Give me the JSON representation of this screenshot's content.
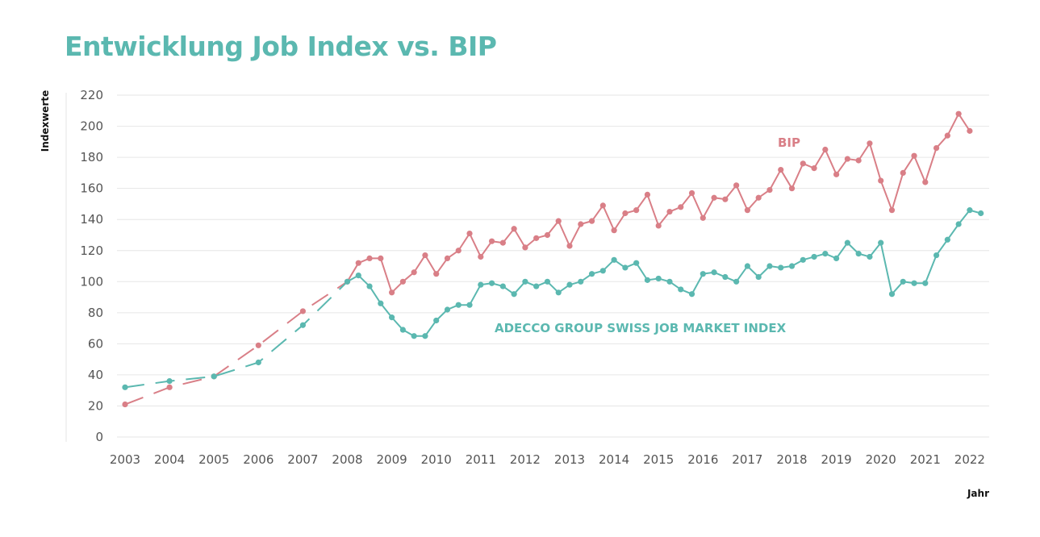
{
  "chart_data": {
    "type": "line",
    "title": "Entwicklung Job Index vs. BIP",
    "xlabel": "Jahr",
    "ylabel": "Indexwerte",
    "ylim": [
      0,
      220
    ],
    "yticks": [
      0,
      20,
      40,
      60,
      80,
      100,
      120,
      140,
      160,
      180,
      200,
      220
    ],
    "xticks": [
      "2003",
      "2004",
      "2005",
      "2006",
      "2007",
      "2008",
      "2009",
      "2010",
      "2011",
      "2012",
      "2013",
      "2014",
      "2015",
      "2016",
      "2017",
      "2018",
      "2019",
      "2020",
      "2021",
      "2022"
    ],
    "grid": true,
    "colors": {
      "title": "#5bb8b0",
      "bip": "#d97f87",
      "job": "#5bb8b0"
    },
    "series": [
      {
        "name": "BIP",
        "color": "#d97f87",
        "annual_dashed": {
          "x": [
            2003,
            2004,
            2005,
            2006,
            2007,
            2008
          ],
          "y": [
            21,
            32,
            39,
            59,
            81,
            100
          ]
        },
        "quarterly": {
          "start": 2008,
          "step": 0.25,
          "y": [
            100,
            112,
            115,
            115,
            93,
            100,
            106,
            117,
            105,
            115,
            120,
            131,
            116,
            126,
            125,
            134,
            122,
            128,
            130,
            139,
            123,
            137,
            139,
            149,
            133,
            144,
            146,
            156,
            136,
            145,
            148,
            157,
            141,
            154,
            153,
            162,
            146,
            154,
            159,
            172,
            160,
            176,
            173,
            185,
            169,
            179,
            178,
            189,
            165,
            146,
            170,
            181,
            164,
            186,
            194,
            208,
            197
          ]
        }
      },
      {
        "name": "ADECCO GROUP SWISS JOB MARKET INDEX",
        "color": "#5bb8b0",
        "annual_dashed": {
          "x": [
            2003,
            2004,
            2005,
            2006,
            2007,
            2008
          ],
          "y": [
            32,
            36,
            39,
            48,
            72,
            100
          ]
        },
        "quarterly": {
          "start": 2008,
          "step": 0.25,
          "y": [
            100,
            104,
            97,
            86,
            77,
            69,
            65,
            65,
            75,
            82,
            85,
            85,
            98,
            99,
            97,
            92,
            100,
            97,
            100,
            93,
            98,
            100,
            105,
            107,
            114,
            109,
            112,
            101,
            102,
            100,
            95,
            92,
            105,
            106,
            103,
            100,
            110,
            103,
            110,
            109,
            110,
            114,
            116,
            118,
            115,
            125,
            118,
            116,
            125,
            92,
            100,
            99,
            99,
            117,
            127,
            137,
            146,
            144
          ]
        }
      }
    ]
  }
}
